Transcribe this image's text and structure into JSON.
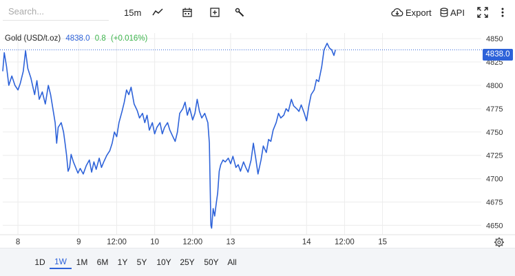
{
  "toolbar": {
    "search_placeholder": "Search...",
    "interval": "15m",
    "chart_type_icon": "line-chart-icon",
    "calendar_icon": "calendar-icon",
    "compare_icon": "plus-square-icon",
    "indicators_icon": "wrench-icon",
    "export_label": "Export",
    "export_icon": "cloud-download-icon",
    "api_label": "API",
    "api_icon": "database-icon",
    "fullscreen_icon": "fullscreen-icon",
    "more_icon": "vertical-dots-icon"
  },
  "legend": {
    "symbol": "Gold (USD/t.oz)",
    "price": "4838.0",
    "change": "0.8",
    "change_pct": "(+0.016%)"
  },
  "last_price_tag": "4838.0",
  "colors": {
    "line": "#2d62d9",
    "positive": "#3cb44b",
    "price": "#2d62d9"
  },
  "ranges": {
    "items": [
      "1D",
      "1W",
      "1M",
      "6M",
      "1Y",
      "5Y",
      "10Y",
      "25Y",
      "50Y",
      "All"
    ],
    "active": "1W"
  },
  "chart_data": {
    "type": "line",
    "title": "",
    "xlabel": "",
    "ylabel": "",
    "ylim": [
      4640,
      4856
    ],
    "yticks": [
      4650,
      4675,
      4700,
      4725,
      4750,
      4775,
      4800,
      4825,
      4850
    ],
    "xlim": [
      0,
      6.3
    ],
    "xticks": [
      {
        "x": 0.2,
        "label": "8"
      },
      {
        "x": 1.0,
        "label": "9"
      },
      {
        "x": 1.5,
        "label": "12:00"
      },
      {
        "x": 2.0,
        "label": "10"
      },
      {
        "x": 2.5,
        "label": "12:00"
      },
      {
        "x": 3.0,
        "label": "13"
      },
      {
        "x": 4.0,
        "label": "14"
      },
      {
        "x": 4.5,
        "label": "12:00"
      },
      {
        "x": 5.0,
        "label": "15"
      }
    ],
    "grid": true,
    "last_value": 4838.0,
    "series": [
      {
        "values": [
          [
            0.0,
            4815
          ],
          [
            0.02,
            4835
          ],
          [
            0.05,
            4820
          ],
          [
            0.08,
            4800
          ],
          [
            0.12,
            4810
          ],
          [
            0.16,
            4800
          ],
          [
            0.2,
            4795
          ],
          [
            0.23,
            4802
          ],
          [
            0.27,
            4815
          ],
          [
            0.3,
            4837
          ],
          [
            0.33,
            4818
          ],
          [
            0.37,
            4808
          ],
          [
            0.42,
            4790
          ],
          [
            0.45,
            4805
          ],
          [
            0.48,
            4785
          ],
          [
            0.52,
            4793
          ],
          [
            0.56,
            4780
          ],
          [
            0.6,
            4800
          ],
          [
            0.63,
            4790
          ],
          [
            0.66,
            4775
          ],
          [
            0.69,
            4760
          ],
          [
            0.71,
            4738
          ],
          [
            0.73,
            4755
          ],
          [
            0.77,
            4760
          ],
          [
            0.8,
            4750
          ],
          [
            0.82,
            4738
          ],
          [
            0.84,
            4725
          ],
          [
            0.86,
            4708
          ],
          [
            0.88,
            4712
          ],
          [
            0.9,
            4726
          ],
          [
            0.93,
            4718
          ],
          [
            0.96,
            4712
          ],
          [
            0.99,
            4706
          ],
          [
            1.02,
            4711
          ],
          [
            1.06,
            4705
          ],
          [
            1.1,
            4714
          ],
          [
            1.14,
            4720
          ],
          [
            1.17,
            4707
          ],
          [
            1.2,
            4718
          ],
          [
            1.23,
            4710
          ],
          [
            1.27,
            4722
          ],
          [
            1.3,
            4712
          ],
          [
            1.33,
            4718
          ],
          [
            1.37,
            4725
          ],
          [
            1.41,
            4730
          ],
          [
            1.44,
            4738
          ],
          [
            1.47,
            4750
          ],
          [
            1.5,
            4745
          ],
          [
            1.53,
            4760
          ],
          [
            1.57,
            4772
          ],
          [
            1.6,
            4782
          ],
          [
            1.63,
            4795
          ],
          [
            1.66,
            4790
          ],
          [
            1.69,
            4798
          ],
          [
            1.73,
            4780
          ],
          [
            1.77,
            4773
          ],
          [
            1.8,
            4765
          ],
          [
            1.84,
            4770
          ],
          [
            1.87,
            4760
          ],
          [
            1.9,
            4768
          ],
          [
            1.93,
            4752
          ],
          [
            1.97,
            4760
          ],
          [
            2.0,
            4748
          ],
          [
            2.03,
            4755
          ],
          [
            2.07,
            4760
          ],
          [
            2.1,
            4748
          ],
          [
            2.13,
            4755
          ],
          [
            2.17,
            4760
          ],
          [
            2.2,
            4752
          ],
          [
            2.24,
            4745
          ],
          [
            2.27,
            4740
          ],
          [
            2.3,
            4750
          ],
          [
            2.33,
            4770
          ],
          [
            2.37,
            4775
          ],
          [
            2.4,
            4782
          ],
          [
            2.43,
            4768
          ],
          [
            2.46,
            4776
          ],
          [
            2.5,
            4763
          ],
          [
            2.53,
            4770
          ],
          [
            2.56,
            4785
          ],
          [
            2.59,
            4772
          ],
          [
            2.62,
            4765
          ],
          [
            2.66,
            4770
          ],
          [
            2.7,
            4760
          ],
          [
            2.72,
            4738
          ],
          [
            2.74,
            4650
          ],
          [
            2.75,
            4647
          ],
          [
            2.77,
            4668
          ],
          [
            2.79,
            4660
          ],
          [
            2.81,
            4673
          ],
          [
            2.83,
            4685
          ],
          [
            2.85,
            4708
          ],
          [
            2.87,
            4715
          ],
          [
            2.9,
            4720
          ],
          [
            2.93,
            4718
          ],
          [
            2.97,
            4722
          ],
          [
            3.0,
            4716
          ],
          [
            3.03,
            4724
          ],
          [
            3.07,
            4712
          ],
          [
            3.1,
            4715
          ],
          [
            3.13,
            4708
          ],
          [
            3.17,
            4718
          ],
          [
            3.2,
            4712
          ],
          [
            3.23,
            4707
          ],
          [
            3.27,
            4720
          ],
          [
            3.3,
            4738
          ],
          [
            3.33,
            4722
          ],
          [
            3.36,
            4705
          ],
          [
            3.4,
            4720
          ],
          [
            3.43,
            4735
          ],
          [
            3.47,
            4728
          ],
          [
            3.5,
            4742
          ],
          [
            3.53,
            4740
          ],
          [
            3.56,
            4752
          ],
          [
            3.6,
            4760
          ],
          [
            3.63,
            4770
          ],
          [
            3.66,
            4765
          ],
          [
            3.7,
            4768
          ],
          [
            3.73,
            4775
          ],
          [
            3.76,
            4772
          ],
          [
            3.8,
            4785
          ],
          [
            3.83,
            4778
          ],
          [
            3.87,
            4775
          ],
          [
            3.9,
            4772
          ],
          [
            3.93,
            4779
          ],
          [
            3.97,
            4770
          ],
          [
            4.0,
            4762
          ],
          [
            4.03,
            4778
          ],
          [
            4.06,
            4790
          ],
          [
            4.1,
            4795
          ],
          [
            4.13,
            4806
          ],
          [
            4.16,
            4804
          ],
          [
            4.2,
            4820
          ],
          [
            4.23,
            4838
          ],
          [
            4.27,
            4845
          ],
          [
            4.3,
            4840
          ],
          [
            4.33,
            4838
          ],
          [
            4.36,
            4832
          ],
          [
            4.38,
            4838
          ]
        ]
      }
    ]
  }
}
